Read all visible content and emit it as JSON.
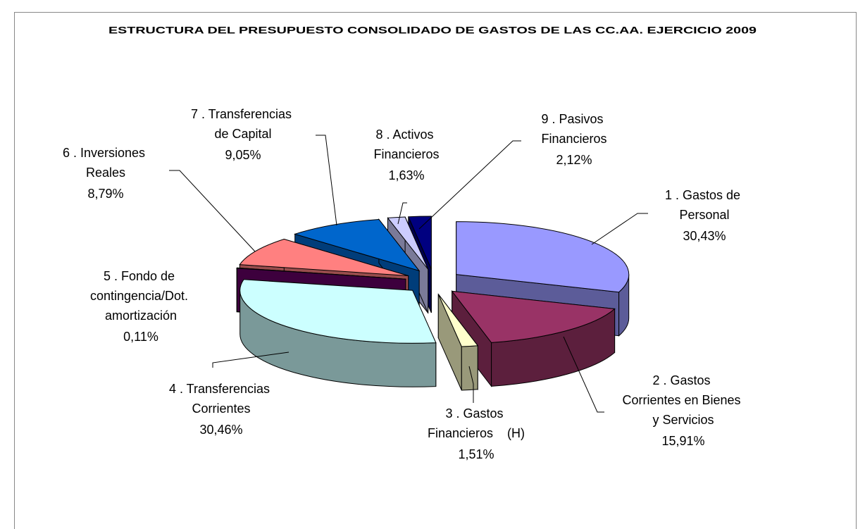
{
  "chart_data": {
    "type": "pie",
    "title": "ESTRUCTURA DEL PRESUPUESTO CONSOLIDADO DE GASTOS DE LAS CC.AA. EJERCICIO 2009",
    "categories": [
      "1 . Gastos de Personal",
      "2 . Gastos Corrientes en Bienes y Servicios",
      "3 . Gastos Financieros    (H)",
      "4 . Transferencias Corrientes",
      "5 . Fondo de contingencia/Dot. amortización",
      "6 . Inversiones Reales",
      "7 . Transferencias de Capital",
      "8 . Activos Financieros",
      "9 . Pasivos Financieros"
    ],
    "values": [
      30.43,
      15.91,
      1.51,
      30.46,
      0.11,
      8.79,
      9.05,
      1.63,
      2.12
    ],
    "value_labels": [
      "30,43%",
      "15,91%",
      "1,51%",
      "30,46%",
      "0,11%",
      "8,79%",
      "9,05%",
      "1,63%",
      "2,12%"
    ],
    "colors": [
      "#9999ff",
      "#993366",
      "#ffffcc",
      "#ccffff",
      "#660066",
      "#ff8080",
      "#0066cc",
      "#ccccff",
      "#000080"
    ]
  }
}
